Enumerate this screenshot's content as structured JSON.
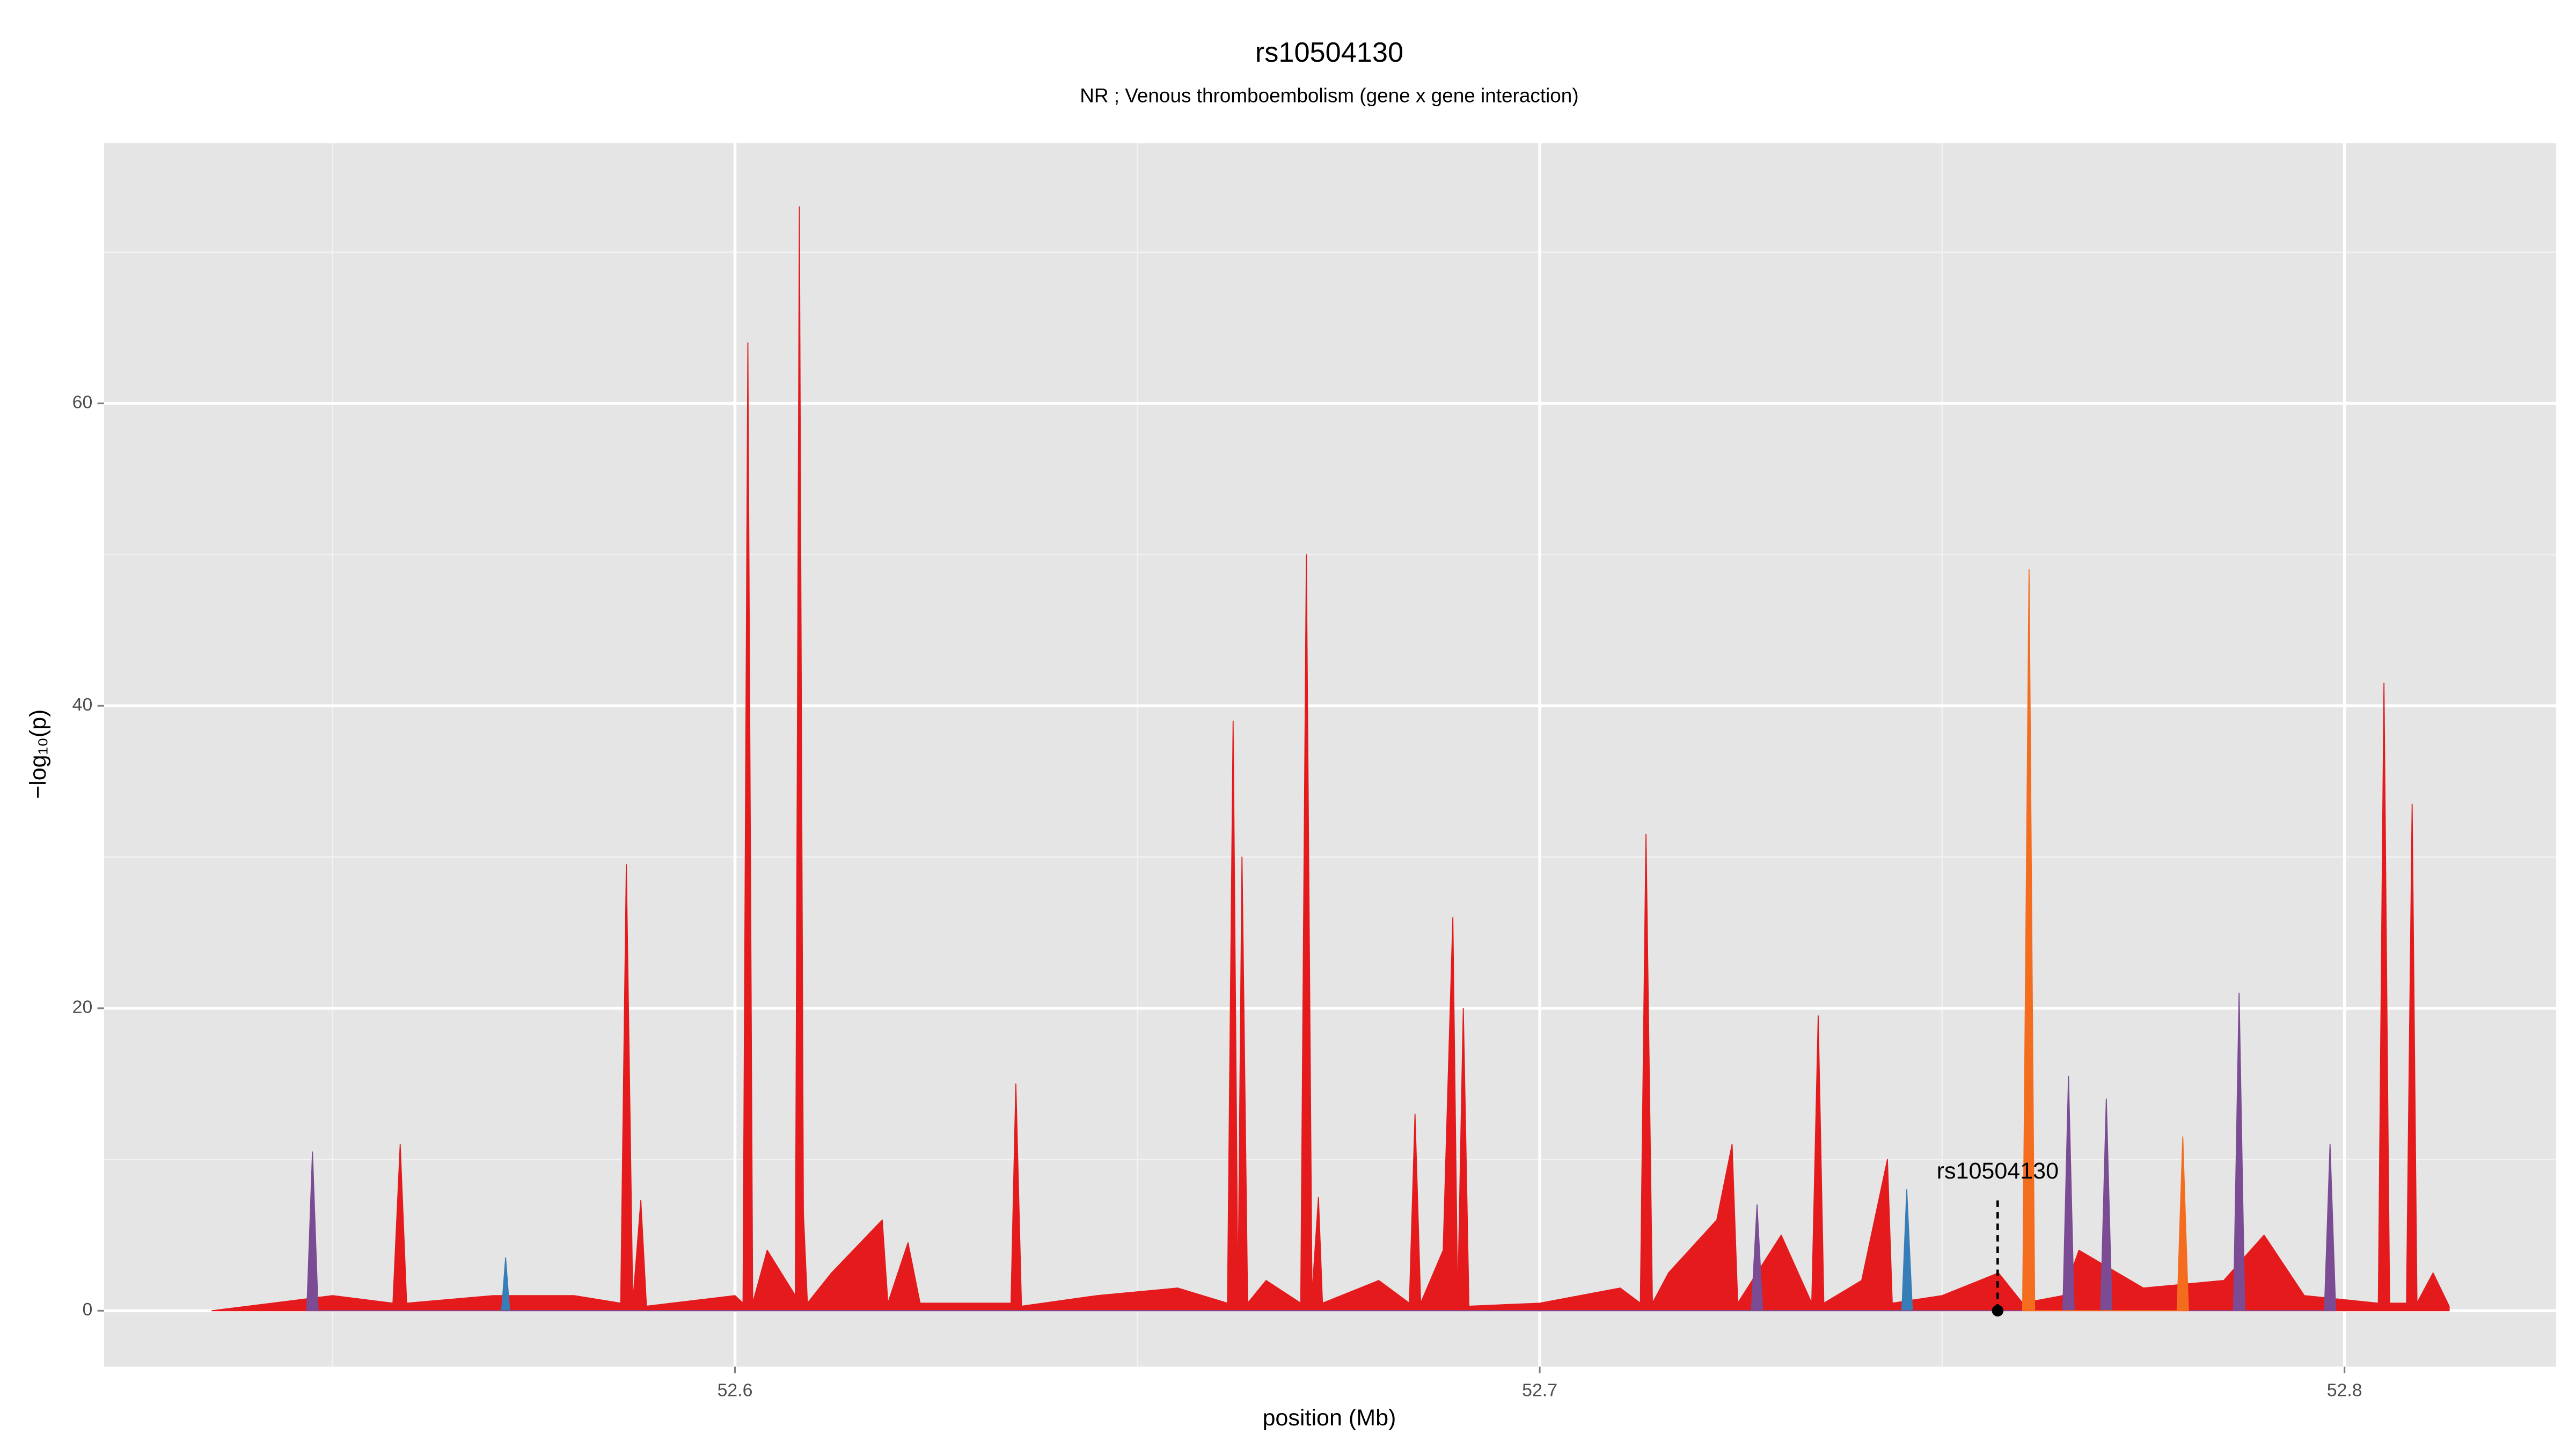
{
  "chart_data": {
    "type": "area",
    "title": "rs10504130",
    "subtitle": "NR ; Venous thromboembolism (gene x gene interaction)",
    "x_label": "position (Mb)",
    "y_label": "−log₁₀(p)",
    "xlim": [
      52.5216,
      52.8263
    ],
    "ylim": [
      -3.7,
      77.2
    ],
    "xticks": [
      52.6,
      52.7,
      52.8
    ],
    "yticks": [
      0,
      20,
      40,
      60
    ],
    "x_minor_grid": [
      52.55,
      52.65,
      52.75
    ],
    "y_minor_grid": [
      10,
      30,
      50,
      70
    ],
    "grid": true,
    "background": "#e5e5e5",
    "series": [
      {
        "name": "red",
        "color": "#e41a1c",
        "x": [
          52.535,
          52.55,
          52.5575,
          52.5584,
          52.5592,
          52.57,
          52.58,
          52.5858,
          52.5865,
          52.5873,
          52.5883,
          52.589,
          52.6,
          52.601,
          52.6016,
          52.6022,
          52.604,
          52.6075,
          52.608,
          52.6085,
          52.609,
          52.612,
          52.6183,
          52.619,
          52.6215,
          52.623,
          52.6343,
          52.6349,
          52.6356,
          52.645,
          52.655,
          52.6612,
          52.6619,
          52.6625,
          52.663,
          52.6637,
          52.666,
          52.6703,
          52.671,
          52.6717,
          52.6725,
          52.673,
          52.68,
          52.6838,
          52.6845,
          52.6852,
          52.688,
          52.6892,
          52.6898,
          52.6905,
          52.6912,
          52.7,
          52.71,
          52.7125,
          52.7132,
          52.714,
          52.716,
          52.722,
          52.7239,
          52.7246,
          52.73,
          52.7338,
          52.7346,
          52.7353,
          52.74,
          52.7432,
          52.7438,
          52.75,
          52.757,
          52.76,
          52.765,
          52.767,
          52.775,
          52.785,
          52.79,
          52.795,
          52.8042,
          52.8049,
          52.8056,
          52.8077,
          52.8084,
          52.809,
          52.811,
          52.813
        ],
        "values": [
          0,
          1,
          0.5,
          11,
          0.5,
          1,
          1,
          0.5,
          29.5,
          0.5,
          7.3,
          0.3,
          1,
          0.5,
          64,
          0.5,
          4,
          1,
          73,
          6.5,
          0.5,
          2.5,
          6,
          0.5,
          4.5,
          0.5,
          0.5,
          15,
          0.3,
          1,
          1.5,
          0.5,
          39,
          0.5,
          30,
          0.5,
          2,
          0.5,
          50,
          1,
          7.5,
          0.5,
          2,
          0.5,
          13,
          0.5,
          4,
          26,
          0.5,
          20,
          0.3,
          0.5,
          1.5,
          0.5,
          31.5,
          0.5,
          2.5,
          6,
          11,
          0.5,
          5,
          0.5,
          19.5,
          0.5,
          2,
          10,
          0.5,
          1,
          2.5,
          0.5,
          1,
          4,
          1.5,
          2,
          5,
          1,
          0.5,
          41.5,
          0.5,
          0.5,
          33.5,
          0.5,
          2.5,
          0.3
        ]
      },
      {
        "name": "blue",
        "color": "#377eb8",
        "x": [
          52.571,
          52.5715,
          52.572,
          52.745,
          52.7456,
          52.7463
        ],
        "values": [
          0,
          3.5,
          0,
          0,
          8,
          0
        ]
      },
      {
        "name": "purple",
        "color": "#7b4b94",
        "x": [
          52.5468,
          52.5475,
          52.5482,
          52.7263,
          52.727,
          52.7277,
          52.765,
          52.7657,
          52.7664,
          52.7697,
          52.7704,
          52.7711,
          52.7862,
          52.7869,
          52.7876,
          52.7975,
          52.7982,
          52.7989
        ],
        "values": [
          0,
          10.5,
          0,
          0,
          7,
          0,
          0,
          15.5,
          0,
          0,
          14,
          0,
          0,
          21,
          0,
          0,
          11,
          0
        ]
      },
      {
        "name": "orange",
        "color": "#f46d1f",
        "x": [
          52.76,
          52.7608,
          52.7615,
          52.7792,
          52.7799,
          52.7806
        ],
        "values": [
          0,
          49,
          0,
          0,
          11.5,
          0
        ]
      }
    ],
    "annotation": {
      "text": "rs10504130",
      "x": 52.7569,
      "y": 0
    }
  }
}
